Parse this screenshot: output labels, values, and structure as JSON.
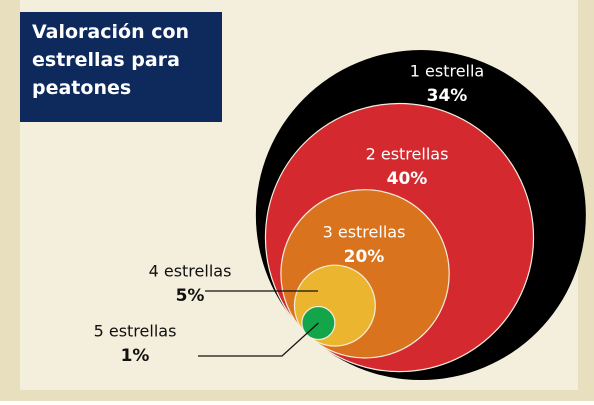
{
  "chart_data": {
    "type": "nested_circles",
    "title": "Valoración con estrellas para peatones",
    "categories": [
      "1 estrella",
      "2 estrellas",
      "3 estrellas",
      "4 estrellas",
      "5 estrellas"
    ],
    "values": [
      34,
      40,
      20,
      5,
      1
    ],
    "value_labels": [
      "34%",
      "40%",
      "20%",
      "5%",
      "1%"
    ],
    "colors": [
      "#000000",
      "#d42a2f",
      "#d9731e",
      "#ecb52f",
      "#12a54a"
    ]
  }
}
